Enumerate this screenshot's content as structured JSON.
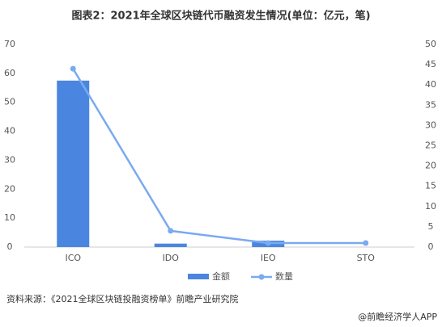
{
  "chart_data": {
    "type": "combo",
    "title": "图表2：2021年全球区块链代币融资发生情况(单位：亿元，笔)",
    "categories": [
      "ICO",
      "IDO",
      "IEO",
      "STO"
    ],
    "series": [
      {
        "name": "金额",
        "type": "bar",
        "color": "#4a86e0",
        "values": [
          57.5,
          1.2,
          2.2,
          0
        ]
      },
      {
        "name": "数量",
        "type": "line",
        "axis": "y2",
        "color": "#7aaaf0",
        "values": [
          44,
          4,
          1,
          1
        ]
      }
    ],
    "ylim": [
      0,
      70
    ],
    "yticks": [
      0,
      10,
      20,
      30,
      40,
      50,
      60,
      70
    ],
    "y2lim": [
      0,
      50
    ],
    "y2ticks": [
      0,
      5,
      10,
      15,
      20,
      25,
      30,
      35,
      40,
      45,
      50
    ],
    "source": "资料来源：《2021全球区块链投融资榜单》前瞻产业研究院",
    "credit": "@前瞻经济学人APP"
  }
}
